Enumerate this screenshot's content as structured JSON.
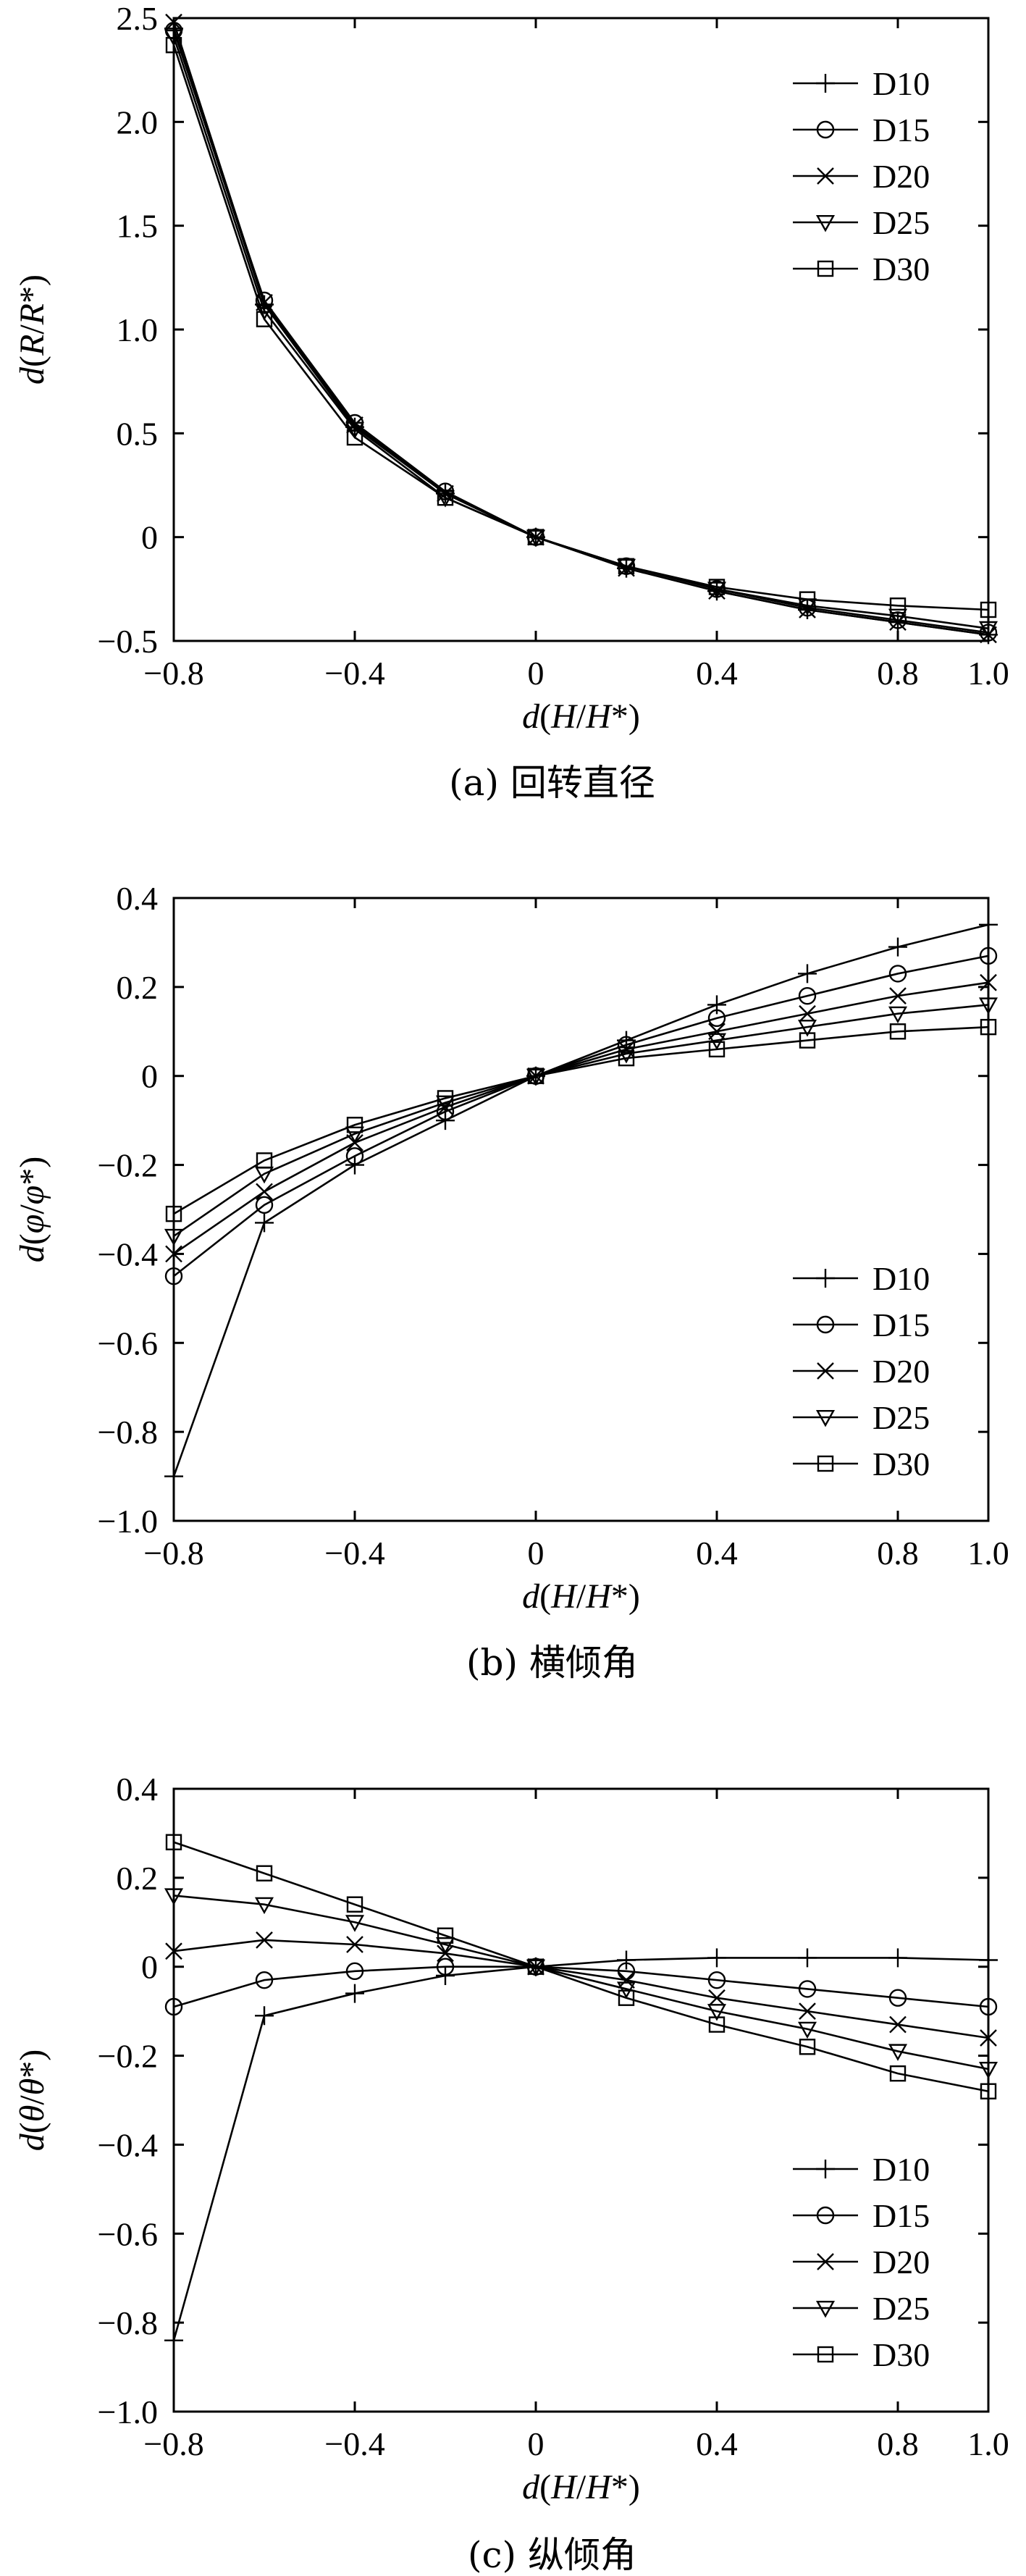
{
  "chart_data": [
    {
      "type": "line",
      "caption": "(a) 回转直径",
      "xlabel": "d(H/H*)",
      "ylabel": "d(R/R*)",
      "xlim": [
        -0.8,
        1.0
      ],
      "ylim": [
        -0.5,
        2.5
      ],
      "xticks": [
        "−0.8",
        "−0.4",
        "0",
        "0.4",
        "0.8",
        "1.0"
      ],
      "xtick_values": [
        -0.8,
        -0.4,
        0,
        0.4,
        0.8,
        1.0
      ],
      "yticks": [
        "−0.5",
        "0",
        "0.5",
        "1.0",
        "1.5",
        "2.0",
        "2.5"
      ],
      "ytick_values": [
        -0.5,
        0,
        0.5,
        1.0,
        1.5,
        2.0,
        2.5
      ],
      "legend_position": "top-right",
      "x": [
        -0.8,
        -0.6,
        -0.4,
        -0.2,
        0,
        0.2,
        0.4,
        0.6,
        0.8,
        1.0
      ],
      "series": [
        {
          "name": "D10",
          "marker": "plus",
          "values": [
            2.45,
            1.12,
            0.53,
            0.21,
            0,
            -0.15,
            -0.26,
            -0.35,
            -0.41,
            -0.47
          ]
        },
        {
          "name": "D15",
          "marker": "circle",
          "values": [
            2.44,
            1.14,
            0.55,
            0.22,
            0,
            -0.14,
            -0.25,
            -0.34,
            -0.4,
            -0.46
          ]
        },
        {
          "name": "D20",
          "marker": "x",
          "values": [
            2.48,
            1.13,
            0.54,
            0.21,
            0,
            -0.15,
            -0.26,
            -0.35,
            -0.41,
            -0.47
          ]
        },
        {
          "name": "D25",
          "marker": "triangle",
          "values": [
            2.41,
            1.09,
            0.52,
            0.19,
            0,
            -0.14,
            -0.25,
            -0.33,
            -0.38,
            -0.44
          ]
        },
        {
          "name": "D30",
          "marker": "square",
          "values": [
            2.37,
            1.05,
            0.48,
            0.19,
            0,
            -0.14,
            -0.24,
            -0.3,
            -0.33,
            -0.35
          ]
        }
      ]
    },
    {
      "type": "line",
      "caption": "(b) 横倾角",
      "xlabel": "d(H/H*)",
      "ylabel": "d(φ/φ*)",
      "xlim": [
        -0.8,
        1.0
      ],
      "ylim": [
        -1.0,
        0.4
      ],
      "xticks": [
        "−0.8",
        "−0.4",
        "0",
        "0.4",
        "0.8",
        "1.0"
      ],
      "xtick_values": [
        -0.8,
        -0.4,
        0,
        0.4,
        0.8,
        1.0
      ],
      "yticks": [
        "−1.0",
        "−0.8",
        "−0.6",
        "−0.4",
        "−0.2",
        "0",
        "0.2",
        "0.4"
      ],
      "ytick_values": [
        -1.0,
        -0.8,
        -0.6,
        -0.4,
        -0.2,
        0,
        0.2,
        0.4
      ],
      "legend_position": "bottom-right",
      "x": [
        -0.8,
        -0.6,
        -0.4,
        -0.2,
        0,
        0.2,
        0.4,
        0.6,
        0.8,
        1.0
      ],
      "series": [
        {
          "name": "D10",
          "marker": "plus",
          "values": [
            -0.9,
            -0.33,
            -0.2,
            -0.1,
            0,
            0.08,
            0.16,
            0.23,
            0.29,
            0.34
          ]
        },
        {
          "name": "D15",
          "marker": "circle",
          "values": [
            -0.45,
            -0.29,
            -0.18,
            -0.08,
            0,
            0.07,
            0.13,
            0.18,
            0.23,
            0.27
          ]
        },
        {
          "name": "D20",
          "marker": "x",
          "values": [
            -0.4,
            -0.26,
            -0.15,
            -0.07,
            0,
            0.06,
            0.1,
            0.14,
            0.18,
            0.21
          ]
        },
        {
          "name": "D25",
          "marker": "triangle",
          "values": [
            -0.36,
            -0.22,
            -0.13,
            -0.06,
            0,
            0.05,
            0.08,
            0.11,
            0.14,
            0.16
          ]
        },
        {
          "name": "D30",
          "marker": "square",
          "values": [
            -0.31,
            -0.19,
            -0.11,
            -0.05,
            0,
            0.04,
            0.06,
            0.08,
            0.1,
            0.11
          ]
        }
      ]
    },
    {
      "type": "line",
      "caption": "(c) 纵倾角",
      "xlabel": "d(H/H*)",
      "ylabel": "d(θ/θ*)",
      "xlim": [
        -0.8,
        1.0
      ],
      "ylim": [
        -1.0,
        0.4
      ],
      "xticks": [
        "−0.8",
        "−0.4",
        "0",
        "0.4",
        "0.8",
        "1.0"
      ],
      "xtick_values": [
        -0.8,
        -0.4,
        0,
        0.4,
        0.8,
        1.0
      ],
      "yticks": [
        "−1.0",
        "−0.8",
        "−0.6",
        "−0.4",
        "−0.2",
        "0",
        "0.2",
        "0.4"
      ],
      "ytick_values": [
        -1.0,
        -0.8,
        -0.6,
        -0.4,
        -0.2,
        0,
        0.2,
        0.4
      ],
      "legend_position": "bottom-right",
      "x": [
        -0.8,
        -0.6,
        -0.4,
        -0.2,
        0,
        0.2,
        0.4,
        0.6,
        0.8,
        1.0
      ],
      "series": [
        {
          "name": "D10",
          "marker": "plus",
          "values": [
            -0.84,
            -0.11,
            -0.06,
            -0.02,
            0,
            0.015,
            0.02,
            0.02,
            0.02,
            0.015
          ]
        },
        {
          "name": "D15",
          "marker": "circle",
          "values": [
            -0.09,
            -0.03,
            -0.01,
            0.0,
            0,
            -0.01,
            -0.03,
            -0.05,
            -0.07,
            -0.09
          ]
        },
        {
          "name": "D20",
          "marker": "x",
          "values": [
            0.035,
            0.06,
            0.05,
            0.03,
            0,
            -0.03,
            -0.07,
            -0.1,
            -0.13,
            -0.16
          ]
        },
        {
          "name": "D25",
          "marker": "triangle",
          "values": [
            0.16,
            0.14,
            0.1,
            0.05,
            0,
            -0.05,
            -0.1,
            -0.14,
            -0.19,
            -0.23
          ]
        },
        {
          "name": "D30",
          "marker": "square",
          "values": [
            0.28,
            0.21,
            0.14,
            0.07,
            0,
            -0.07,
            -0.13,
            -0.18,
            -0.24,
            -0.28
          ]
        }
      ]
    }
  ]
}
